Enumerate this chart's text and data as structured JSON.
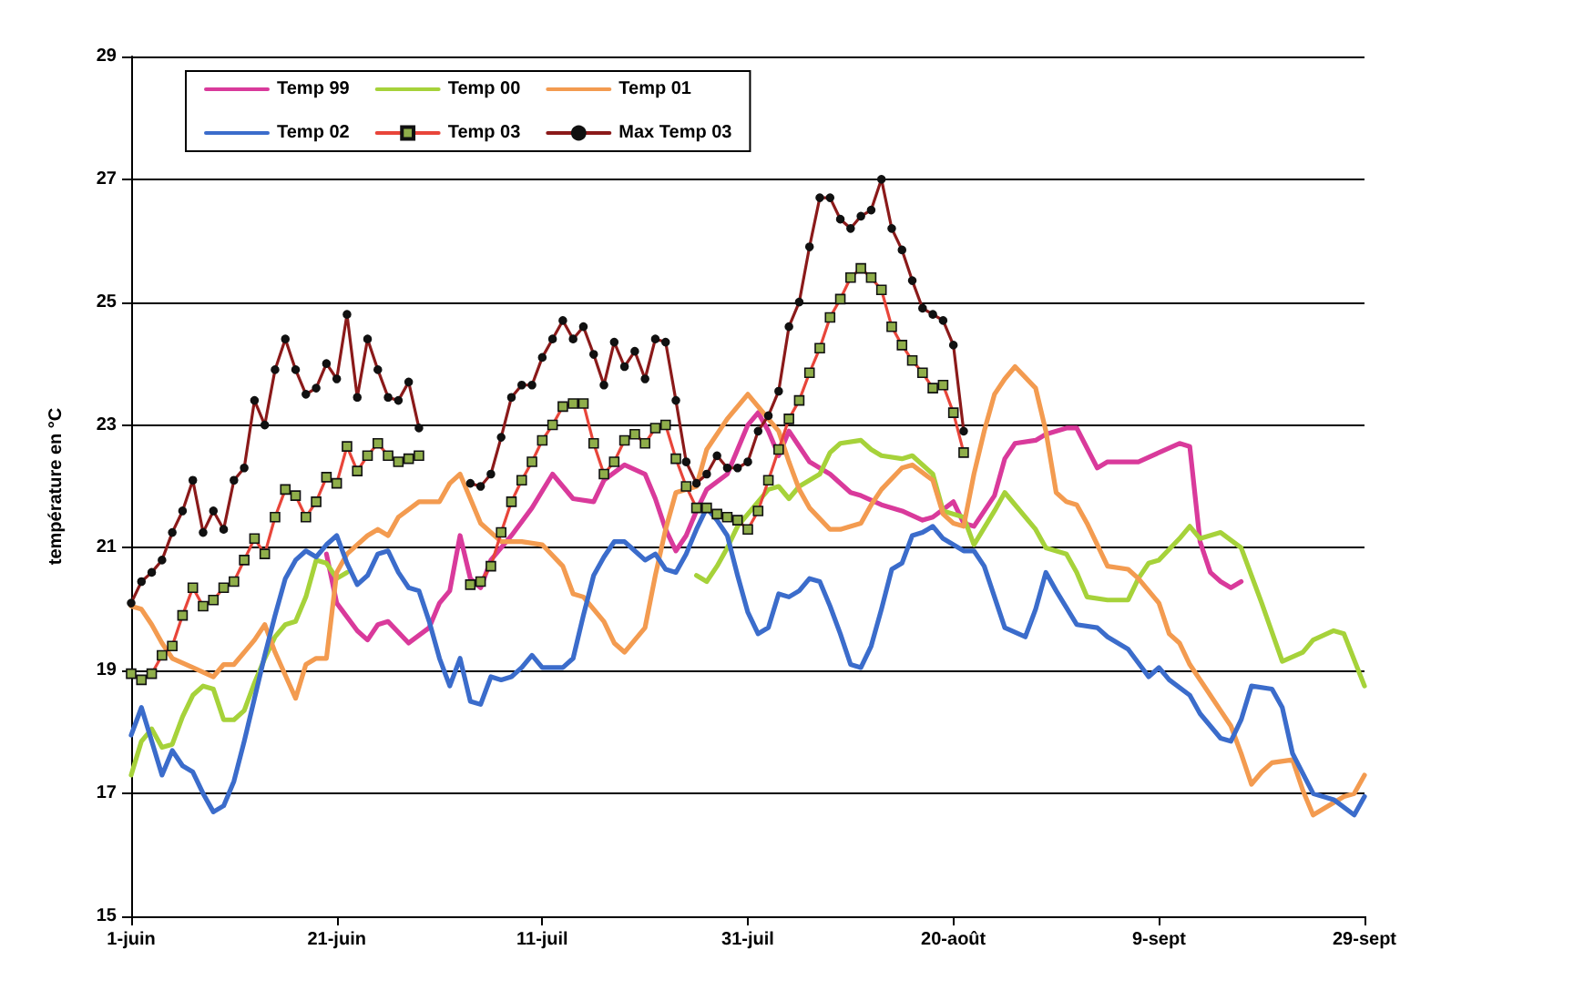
{
  "chart_data": {
    "type": "line",
    "ylabel": "température en °C",
    "xlim": [
      "--06-01",
      "--09-29"
    ],
    "xticks": [
      {
        "value": "--06-01",
        "label": "1-juin"
      },
      {
        "value": "--06-21",
        "label": "21-juin"
      },
      {
        "value": "--07-11",
        "label": "11-juil"
      },
      {
        "value": "--07-31",
        "label": "31-juil"
      },
      {
        "value": "--08-20",
        "label": "20-août"
      },
      {
        "value": "--09-09",
        "label": "9-sept"
      },
      {
        "value": "--09-29",
        "label": "29-sept"
      }
    ],
    "ylim": [
      15,
      29
    ],
    "yticks": [
      15,
      17,
      19,
      21,
      23,
      25,
      27,
      29
    ],
    "grid": "y",
    "legend": "top left",
    "series": [
      {
        "name": "Temp 99",
        "color": "#d93a9b",
        "marker": "none",
        "x": [
          "--06-20",
          "--06-21",
          "--06-23",
          "--06-24",
          "--06-25",
          "--06-26",
          "--06-28",
          "--06-30",
          "--07-01",
          "--07-02",
          "--07-03",
          "--07-04",
          "--07-05",
          "--07-06",
          "--07-08",
          "--07-10",
          "--07-12",
          "--07-14",
          "--07-16",
          "--07-17",
          "--07-19",
          "--07-21",
          "--07-22",
          "--07-23",
          "--07-24",
          "--07-25",
          "--07-26",
          "--07-27",
          "--07-29",
          "--07-31",
          "--08-01",
          "--08-02",
          "--08-03",
          "--08-04",
          "--08-06",
          "--08-08",
          "--08-10",
          "--08-11",
          "--08-13",
          "--08-15",
          "--08-17",
          "--08-18",
          "--08-20",
          "--08-21",
          "--08-22",
          "--08-24",
          "--08-25",
          "--08-26",
          "--08-28",
          "--08-29",
          "--08-31",
          "--09-01",
          "--09-03",
          "--09-04",
          "--09-06",
          "--09-07",
          "--09-09",
          "--09-11",
          "--09-12",
          "--09-13",
          "--09-14",
          "--09-15",
          "--09-16",
          "--09-17"
        ],
        "values": [
          20.9,
          20.1,
          19.65,
          19.5,
          19.75,
          19.8,
          19.45,
          19.7,
          20.1,
          20.3,
          21.2,
          20.5,
          20.35,
          20.8,
          21.2,
          21.65,
          22.2,
          21.8,
          21.75,
          22.1,
          22.35,
          22.2,
          21.8,
          21.3,
          20.95,
          21.2,
          21.6,
          21.95,
          22.2,
          23.0,
          23.2,
          22.9,
          22.5,
          22.9,
          22.4,
          22.2,
          21.9,
          21.85,
          21.7,
          21.6,
          21.45,
          21.5,
          21.75,
          21.4,
          21.35,
          21.85,
          22.45,
          22.7,
          22.75,
          22.85,
          22.95,
          22.95,
          22.3,
          22.4,
          22.4,
          22.4,
          22.55,
          22.7,
          22.65,
          21.1,
          20.6,
          20.45,
          20.35,
          20.45
        ]
      },
      {
        "name": "Temp 00",
        "color": "#a6d23a",
        "marker": "none",
        "x": [
          "--06-01",
          "--06-02",
          "--06-03",
          "--06-04",
          "--06-05",
          "--06-06",
          "--06-07",
          "--06-08",
          "--06-09",
          "--06-10",
          "--06-11",
          "--06-12",
          "--06-13",
          "--06-14",
          "--06-15",
          "--06-16",
          "--06-17",
          "--06-18",
          "--06-19",
          "--06-20",
          "--06-21",
          "--06-22",
          "--07-08",
          "--07-26",
          "--07-27",
          "--07-28",
          "--07-29",
          "--07-30",
          "--07-31",
          "--08-01",
          "--08-02",
          "--08-03",
          "--08-04",
          "--08-05",
          "--08-06",
          "--08-07",
          "--08-08",
          "--08-09",
          "--08-11",
          "--08-12",
          "--08-13",
          "--08-15",
          "--08-16",
          "--08-18",
          "--08-19",
          "--08-21",
          "--08-22",
          "--08-24",
          "--08-25",
          "--08-26",
          "--08-28",
          "--08-29",
          "--08-31",
          "--09-01",
          "--09-02",
          "--09-04",
          "--09-06",
          "--09-07",
          "--09-08",
          "--09-09",
          "--09-11",
          "--09-12",
          "--09-13",
          "--09-15",
          "--09-17",
          "--09-19",
          "--09-21",
          "--09-23",
          "--09-24",
          "--09-26",
          "--09-27",
          "--09-29"
        ],
        "values": [
          17.3,
          17.85,
          18.05,
          17.75,
          17.8,
          18.25,
          18.6,
          18.75,
          18.7,
          18.2,
          18.2,
          18.35,
          18.8,
          19.2,
          19.55,
          19.75,
          19.8,
          20.2,
          20.8,
          20.75,
          20.5,
          20.6,
          null,
          20.55,
          20.45,
          20.7,
          21.0,
          21.35,
          21.55,
          21.75,
          21.95,
          22.0,
          21.8,
          22.0,
          22.1,
          22.2,
          22.55,
          22.7,
          22.75,
          22.6,
          22.5,
          22.45,
          22.5,
          22.2,
          21.6,
          21.5,
          21.05,
          21.6,
          21.9,
          21.7,
          21.3,
          21.0,
          20.9,
          20.6,
          20.2,
          20.15,
          20.15,
          20.5,
          20.75,
          20.8,
          21.15,
          21.35,
          21.15,
          21.25,
          21.0,
          20.1,
          19.15,
          19.3,
          19.5,
          19.65,
          19.6,
          18.75
        ]
      },
      {
        "name": "Temp 01",
        "color": "#f39b50",
        "marker": "none",
        "x": [
          "--06-01",
          "--06-02",
          "--06-03",
          "--06-04",
          "--06-05",
          "--06-07",
          "--06-09",
          "--06-10",
          "--06-11",
          "--06-12",
          "--06-13",
          "--06-14",
          "--06-15",
          "--06-17",
          "--06-18",
          "--06-19",
          "--06-20",
          "--06-21",
          "--06-22",
          "--06-24",
          "--06-25",
          "--06-26",
          "--06-27",
          "--06-29",
          "--07-01",
          "--07-02",
          "--07-03",
          "--07-05",
          "--07-07",
          "--07-09",
          "--07-11",
          "--07-13",
          "--07-14",
          "--07-15",
          "--07-17",
          "--07-18",
          "--07-19",
          "--07-21",
          "--07-22",
          "--07-23",
          "--07-24",
          "--07-26",
          "--07-27",
          "--07-29",
          "--07-31",
          "--08-01",
          "--08-03",
          "--08-04",
          "--08-05",
          "--08-06",
          "--08-08",
          "--08-09",
          "--08-11",
          "--08-12",
          "--08-13",
          "--08-15",
          "--08-16",
          "--08-18",
          "--08-19",
          "--08-20",
          "--08-21",
          "--08-22",
          "--08-23",
          "--08-24",
          "--08-25",
          "--08-26",
          "--08-28",
          "--08-29",
          "--08-30",
          "--08-31",
          "--09-01",
          "--09-02",
          "--09-04",
          "--09-06",
          "--09-07",
          "--09-09",
          "--09-10",
          "--09-11",
          "--09-12",
          "--09-14",
          "--09-15",
          "--09-16",
          "--09-17",
          "--09-18",
          "--09-19",
          "--09-20",
          "--09-22",
          "--09-23",
          "--09-24",
          "--09-25",
          "--09-27",
          "--09-28",
          "--09-29"
        ],
        "values": [
          20.05,
          20.0,
          19.75,
          19.45,
          19.2,
          19.05,
          18.9,
          19.1,
          19.1,
          19.3,
          19.5,
          19.75,
          19.3,
          18.55,
          19.1,
          19.2,
          19.2,
          20.6,
          20.9,
          21.2,
          21.3,
          21.2,
          21.5,
          21.75,
          21.75,
          22.05,
          22.2,
          21.4,
          21.1,
          21.1,
          21.05,
          20.7,
          20.25,
          20.2,
          19.8,
          19.45,
          19.3,
          19.7,
          20.55,
          21.3,
          21.9,
          22.0,
          22.6,
          23.1,
          23.5,
          23.3,
          22.9,
          22.4,
          21.95,
          21.65,
          21.3,
          21.3,
          21.4,
          21.7,
          21.95,
          22.3,
          22.35,
          22.1,
          21.55,
          21.4,
          21.35,
          22.2,
          22.9,
          23.5,
          23.75,
          23.95,
          23.6,
          22.9,
          21.9,
          21.75,
          21.7,
          21.4,
          20.7,
          20.65,
          20.5,
          20.1,
          19.6,
          19.45,
          19.1,
          18.6,
          18.35,
          18.1,
          17.65,
          17.15,
          17.35,
          17.5,
          17.55,
          17.05,
          16.65,
          16.75,
          16.95,
          17.0,
          17.3
        ]
      },
      {
        "name": "Temp 02",
        "color": "#3b6ccb",
        "marker": "none",
        "x": [
          "--06-01",
          "--06-02",
          "--06-03",
          "--06-04",
          "--06-05",
          "--06-06",
          "--06-07",
          "--06-08",
          "--06-09",
          "--06-10",
          "--06-11",
          "--06-12",
          "--06-13",
          "--06-14",
          "--06-15",
          "--06-16",
          "--06-17",
          "--06-18",
          "--06-19",
          "--06-20",
          "--06-21",
          "--06-22",
          "--06-23",
          "--06-24",
          "--06-25",
          "--06-26",
          "--06-27",
          "--06-28",
          "--06-29",
          "--06-30",
          "--07-01",
          "--07-02",
          "--07-03",
          "--07-04",
          "--07-05",
          "--07-06",
          "--07-07",
          "--07-08",
          "--07-09",
          "--07-10",
          "--07-11",
          "--07-13",
          "--07-14",
          "--07-15",
          "--07-16",
          "--07-17",
          "--07-18",
          "--07-19",
          "--07-20",
          "--07-21",
          "--07-22",
          "--07-23",
          "--07-24",
          "--07-25",
          "--07-26",
          "--07-27",
          "--07-28",
          "--07-29",
          "--07-30",
          "--07-31",
          "--08-01",
          "--08-02",
          "--08-03",
          "--08-04",
          "--08-05",
          "--08-06",
          "--08-07",
          "--08-08",
          "--08-09",
          "--08-10",
          "--08-11",
          "--08-12",
          "--08-13",
          "--08-14",
          "--08-15",
          "--08-16",
          "--08-17",
          "--08-18",
          "--08-19",
          "--08-20",
          "--08-21",
          "--08-22",
          "--08-23",
          "--08-24",
          "--08-25",
          "--08-27",
          "--08-28",
          "--08-29",
          "--08-30",
          "--09-01",
          "--09-03",
          "--09-04",
          "--09-06",
          "--09-08",
          "--09-09",
          "--09-10",
          "--09-12",
          "--09-13",
          "--09-15",
          "--09-16",
          "--09-17",
          "--09-18",
          "--09-20",
          "--09-21",
          "--09-22",
          "--09-24",
          "--09-26",
          "--09-28",
          "--09-29"
        ],
        "values": [
          17.95,
          18.4,
          17.85,
          17.3,
          17.7,
          17.45,
          17.35,
          17.0,
          16.7,
          16.8,
          17.2,
          17.85,
          18.55,
          19.25,
          19.9,
          20.5,
          20.8,
          20.95,
          20.85,
          21.05,
          21.2,
          20.75,
          20.4,
          20.55,
          20.9,
          20.95,
          20.6,
          20.35,
          20.3,
          19.8,
          19.2,
          18.75,
          19.2,
          18.5,
          18.45,
          18.9,
          18.85,
          18.9,
          19.05,
          19.25,
          19.05,
          19.05,
          19.2,
          19.9,
          20.55,
          20.85,
          21.1,
          21.1,
          20.95,
          20.8,
          20.9,
          20.65,
          20.6,
          20.9,
          21.3,
          21.65,
          21.45,
          21.2,
          20.55,
          19.95,
          19.6,
          19.7,
          20.25,
          20.2,
          20.3,
          20.5,
          20.45,
          20.05,
          19.6,
          19.1,
          19.05,
          19.4,
          20.0,
          20.65,
          20.75,
          21.2,
          21.25,
          21.35,
          21.15,
          21.05,
          20.95,
          20.95,
          20.7,
          20.2,
          19.7,
          19.55,
          20.0,
          20.6,
          20.3,
          19.75,
          19.7,
          19.55,
          19.35,
          18.9,
          19.05,
          18.85,
          18.6,
          18.3,
          17.9,
          17.85,
          18.2,
          18.75,
          18.7,
          18.4,
          17.65,
          17.0,
          16.9,
          16.65,
          16.95
        ]
      },
      {
        "name": "Temp 03",
        "color": "#e8453a",
        "marker": "square",
        "x": [
          "--06-01",
          "--06-02",
          "--06-03",
          "--06-04",
          "--06-05",
          "--06-06",
          "--06-07",
          "--06-08",
          "--06-09",
          "--06-10",
          "--06-11",
          "--06-12",
          "--06-13",
          "--06-14",
          "--06-15",
          "--06-16",
          "--06-17",
          "--06-18",
          "--06-19",
          "--06-20",
          "--06-21",
          "--06-22",
          "--06-23",
          "--06-24",
          "--06-25",
          "--06-26",
          "--06-27",
          "--06-28",
          "--06-29",
          "--07-01",
          "--07-04",
          "--07-05",
          "--07-06",
          "--07-07",
          "--07-08",
          "--07-09",
          "--07-10",
          "--07-11",
          "--07-12",
          "--07-13",
          "--07-14",
          "--07-15",
          "--07-16",
          "--07-17",
          "--07-18",
          "--07-19",
          "--07-20",
          "--07-21",
          "--07-22",
          "--07-23",
          "--07-24",
          "--07-25",
          "--07-26",
          "--07-27",
          "--07-28",
          "--07-29",
          "--07-30",
          "--07-31",
          "--08-01",
          "--08-02",
          "--08-03",
          "--08-04",
          "--08-05",
          "--08-06",
          "--08-07",
          "--08-08",
          "--08-09",
          "--08-10",
          "--08-11",
          "--08-12",
          "--08-13",
          "--08-14",
          "--08-15",
          "--08-16",
          "--08-17",
          "--08-18",
          "--08-19",
          "--08-20",
          "--08-21"
        ],
        "values": [
          18.95,
          18.85,
          18.95,
          19.25,
          19.4,
          19.9,
          20.35,
          20.05,
          20.15,
          20.35,
          20.45,
          20.8,
          21.15,
          20.9,
          21.5,
          21.95,
          21.85,
          21.5,
          21.75,
          22.15,
          22.05,
          22.65,
          22.25,
          22.5,
          22.7,
          22.5,
          22.4,
          22.45,
          22.5,
          null,
          20.4,
          20.45,
          20.7,
          21.25,
          21.75,
          22.1,
          22.4,
          22.75,
          23.0,
          23.3,
          23.35,
          23.35,
          22.7,
          22.2,
          22.4,
          22.75,
          22.85,
          22.7,
          22.95,
          23.0,
          22.45,
          22.0,
          21.65,
          21.65,
          21.55,
          21.5,
          21.45,
          21.3,
          21.6,
          22.1,
          22.6,
          23.1,
          23.4,
          23.85,
          24.25,
          24.75,
          25.05,
          25.4,
          25.55,
          25.4,
          25.2,
          24.6,
          24.3,
          24.05,
          23.85,
          23.6,
          23.65,
          23.2,
          22.55
        ]
      },
      {
        "name": "Max Temp 03",
        "color": "#8b1a1a",
        "marker": "circle",
        "x": [
          "--06-01",
          "--06-02",
          "--06-03",
          "--06-04",
          "--06-05",
          "--06-06",
          "--06-07",
          "--06-08",
          "--06-09",
          "--06-10",
          "--06-11",
          "--06-12",
          "--06-13",
          "--06-14",
          "--06-15",
          "--06-16",
          "--06-17",
          "--06-18",
          "--06-19",
          "--06-20",
          "--06-21",
          "--06-22",
          "--06-23",
          "--06-24",
          "--06-25",
          "--06-26",
          "--06-27",
          "--06-28",
          "--06-29",
          "--07-01",
          "--07-04",
          "--07-05",
          "--07-06",
          "--07-07",
          "--07-08",
          "--07-09",
          "--07-10",
          "--07-11",
          "--07-12",
          "--07-13",
          "--07-14",
          "--07-15",
          "--07-16",
          "--07-17",
          "--07-18",
          "--07-19",
          "--07-20",
          "--07-21",
          "--07-22",
          "--07-23",
          "--07-24",
          "--07-25",
          "--07-26",
          "--07-27",
          "--07-28",
          "--07-29",
          "--07-30",
          "--07-31",
          "--08-01",
          "--08-02",
          "--08-03",
          "--08-04",
          "--08-05",
          "--08-06",
          "--08-07",
          "--08-08",
          "--08-09",
          "--08-10",
          "--08-11",
          "--08-12",
          "--08-13",
          "--08-14",
          "--08-15",
          "--08-16",
          "--08-17",
          "--08-18",
          "--08-19",
          "--08-20",
          "--08-21"
        ],
        "values": [
          20.1,
          20.45,
          20.6,
          20.8,
          21.25,
          21.6,
          22.1,
          21.25,
          21.6,
          21.3,
          22.1,
          22.3,
          23.4,
          23.0,
          23.9,
          24.4,
          23.9,
          23.5,
          23.6,
          24.0,
          23.75,
          24.8,
          23.45,
          24.4,
          23.9,
          23.45,
          23.4,
          23.7,
          22.95,
          null,
          22.05,
          22.0,
          22.2,
          22.8,
          23.45,
          23.65,
          23.65,
          24.1,
          24.4,
          24.7,
          24.4,
          24.6,
          24.15,
          23.65,
          24.35,
          23.95,
          24.2,
          23.75,
          24.4,
          24.35,
          23.4,
          22.4,
          22.05,
          22.2,
          22.5,
          22.3,
          22.3,
          22.4,
          22.9,
          23.15,
          23.55,
          24.6,
          25.0,
          25.9,
          26.7,
          26.7,
          26.35,
          26.2,
          26.4,
          26.5,
          27.0,
          26.2,
          25.85,
          25.35,
          24.9,
          24.8,
          24.7,
          24.3,
          22.9
        ]
      }
    ]
  }
}
